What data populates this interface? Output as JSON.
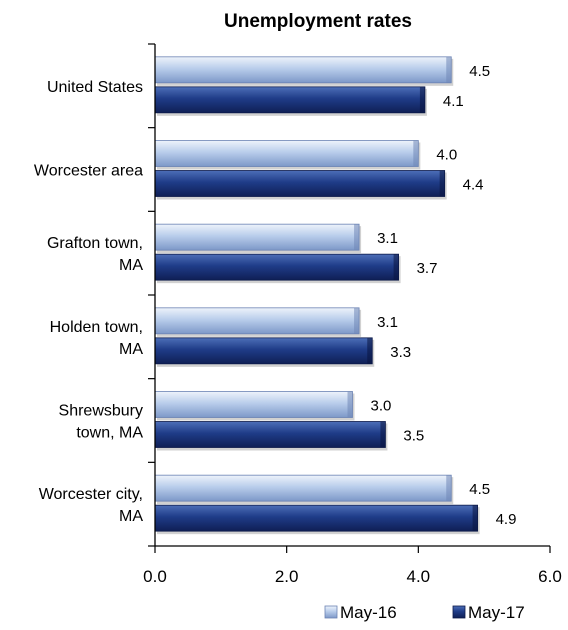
{
  "chart_data": {
    "type": "bar",
    "orientation": "horizontal",
    "title": "Unemployment rates",
    "categories": [
      [
        "United States"
      ],
      [
        "Worcester area"
      ],
      [
        "Grafton town,",
        "MA"
      ],
      [
        "Holden town,",
        "MA"
      ],
      [
        "Shrewsbury",
        "town, MA"
      ],
      [
        "Worcester city,",
        "MA"
      ]
    ],
    "series": [
      {
        "name": "May-16",
        "color": "#a9c0e6",
        "values": [
          4.5,
          4.0,
          3.1,
          3.1,
          3.0,
          4.5
        ]
      },
      {
        "name": "May-17",
        "color": "#1f3c88",
        "values": [
          4.1,
          4.4,
          3.7,
          3.3,
          3.5,
          4.9
        ]
      }
    ],
    "value_labels": [
      [
        "4.5",
        "4.0",
        "3.1",
        "3.1",
        "3.0",
        "4.5"
      ],
      [
        "4.1",
        "4.4",
        "3.7",
        "3.3",
        "3.5",
        "4.9"
      ]
    ],
    "xlim": [
      0,
      6
    ],
    "xticks": [
      "0.0",
      "2.0",
      "4.0",
      "6.0"
    ],
    "xtick_values": [
      0,
      2,
      4,
      6
    ],
    "grid": false,
    "legend_position": "bottom-right"
  }
}
